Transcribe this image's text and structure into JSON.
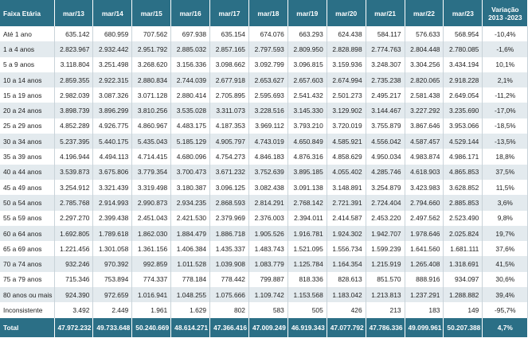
{
  "table": {
    "header": [
      "Faixa Etária",
      "mar/13",
      "mar/14",
      "mar/15",
      "mar/16",
      "mar/17",
      "mar/18",
      "mar/19",
      "mar/20",
      "mar/21",
      "mar/22",
      "mar/23",
      "Variação 2013 -2023"
    ],
    "rows": [
      [
        "Até 1 ano",
        "635.142",
        "680.959",
        "707.562",
        "697.938",
        "635.154",
        "674.076",
        "663.293",
        "624.438",
        "584.117",
        "576.633",
        "568.954",
        "-10,4%"
      ],
      [
        "1 a 4 anos",
        "2.823.967",
        "2.932.442",
        "2.951.792",
        "2.885.032",
        "2.857.165",
        "2.797.593",
        "2.809.950",
        "2.828.898",
        "2.774.763",
        "2.804.448",
        "2.780.085",
        "-1,6%"
      ],
      [
        "5 a 9 anos",
        "3.118.804",
        "3.251.498",
        "3.268.620",
        "3.156.336",
        "3.098.662",
        "3.092.799",
        "3.096.815",
        "3.159.936",
        "3.248.307",
        "3.304.256",
        "3.434.194",
        "10,1%"
      ],
      [
        "10 a 14 anos",
        "2.859.355",
        "2.922.315",
        "2.880.834",
        "2.744.039",
        "2.677.918",
        "2.653.627",
        "2.657.603",
        "2.674.994",
        "2.735.238",
        "2.820.065",
        "2.918.228",
        "2,1%"
      ],
      [
        "15 a 19 anos",
        "2.982.039",
        "3.087.326",
        "3.071.128",
        "2.880.414",
        "2.705.895",
        "2.595.693",
        "2.541.432",
        "2.501.273",
        "2.495.217",
        "2.581.438",
        "2.649.054",
        "-11,2%"
      ],
      [
        "20 a 24 anos",
        "3.898.739",
        "3.896.299",
        "3.810.256",
        "3.535.028",
        "3.311.073",
        "3.228.516",
        "3.145.330",
        "3.129.902",
        "3.144.467",
        "3.227.292",
        "3.235.690",
        "-17,0%"
      ],
      [
        "25 a 29 anos",
        "4.852.289",
        "4.926.775",
        "4.860.967",
        "4.483.175",
        "4.187.353",
        "3.969.112",
        "3.793.210",
        "3.720.019",
        "3.755.879",
        "3.867.646",
        "3.953.066",
        "-18,5%"
      ],
      [
        "30 a 34 anos",
        "5.237.395",
        "5.440.175",
        "5.435.043",
        "5.185.129",
        "4.905.797",
        "4.743.019",
        "4.650.849",
        "4.585.921",
        "4.556.042",
        "4.587.457",
        "4.529.144",
        "-13,5%"
      ],
      [
        "35 a 39 anos",
        "4.196.944",
        "4.494.113",
        "4.714.415",
        "4.680.096",
        "4.754.273",
        "4.846.183",
        "4.876.316",
        "4.858.629",
        "4.950.034",
        "4.983.874",
        "4.986.171",
        "18,8%"
      ],
      [
        "40 a 44 anos",
        "3.539.873",
        "3.675.806",
        "3.779.354",
        "3.700.473",
        "3.671.232",
        "3.752.639",
        "3.895.185",
        "4.055.402",
        "4.285.746",
        "4.618.903",
        "4.865.853",
        "37,5%"
      ],
      [
        "45 a 49 anos",
        "3.254.912",
        "3.321.439",
        "3.319.498",
        "3.180.387",
        "3.096.125",
        "3.082.438",
        "3.091.138",
        "3.148.891",
        "3.254.879",
        "3.423.983",
        "3.628.852",
        "11,5%"
      ],
      [
        "50 a 54 anos",
        "2.785.768",
        "2.914.993",
        "2.990.873",
        "2.934.235",
        "2.868.593",
        "2.814.291",
        "2.768.142",
        "2.721.391",
        "2.724.404",
        "2.794.660",
        "2.885.853",
        "3,6%"
      ],
      [
        "55 a 59 anos",
        "2.297.270",
        "2.399.438",
        "2.451.043",
        "2.421.530",
        "2.379.969",
        "2.376.003",
        "2.394.011",
        "2.414.587",
        "2.453.220",
        "2.497.562",
        "2.523.490",
        "9,8%"
      ],
      [
        "60 a 64 anos",
        "1.692.805",
        "1.789.618",
        "1.862.030",
        "1.884.479",
        "1.886.718",
        "1.905.526",
        "1.916.781",
        "1.924.302",
        "1.942.707",
        "1.978.646",
        "2.025.824",
        "19,7%"
      ],
      [
        "65 a 69 anos",
        "1.221.456",
        "1.301.058",
        "1.361.156",
        "1.406.384",
        "1.435.337",
        "1.483.743",
        "1.521.095",
        "1.556.734",
        "1.599.239",
        "1.641.560",
        "1.681.111",
        "37,6%"
      ],
      [
        "70 a 74 anos",
        "932.246",
        "970.392",
        "992.859",
        "1.011.528",
        "1.039.908",
        "1.083.779",
        "1.125.784",
        "1.164.354",
        "1.215.919",
        "1.265.408",
        "1.318.691",
        "41,5%"
      ],
      [
        "75 a 79 anos",
        "715.346",
        "753.894",
        "774.337",
        "778.184",
        "778.442",
        "799.887",
        "818.336",
        "828.613",
        "851.570",
        "888.916",
        "934.097",
        "30,6%"
      ],
      [
        "80 anos ou mais",
        "924.390",
        "972.659",
        "1.016.941",
        "1.048.255",
        "1.075.666",
        "1.109.742",
        "1.153.568",
        "1.183.042",
        "1.213.813",
        "1.237.291",
        "1.288.882",
        "39,4%"
      ],
      [
        "Inconsistente",
        "3.492",
        "2.449",
        "1.961",
        "1.629",
        "802",
        "583",
        "505",
        "426",
        "213",
        "183",
        "149",
        "-95,7%"
      ]
    ],
    "total": [
      "Total",
      "47.972.232",
      "49.733.648",
      "50.240.669",
      "48.614.271",
      "47.366.416",
      "47.009.249",
      "46.919.343",
      "47.077.792",
      "47.786.336",
      "49.099.961",
      "50.207.388",
      "4,7%"
    ]
  }
}
